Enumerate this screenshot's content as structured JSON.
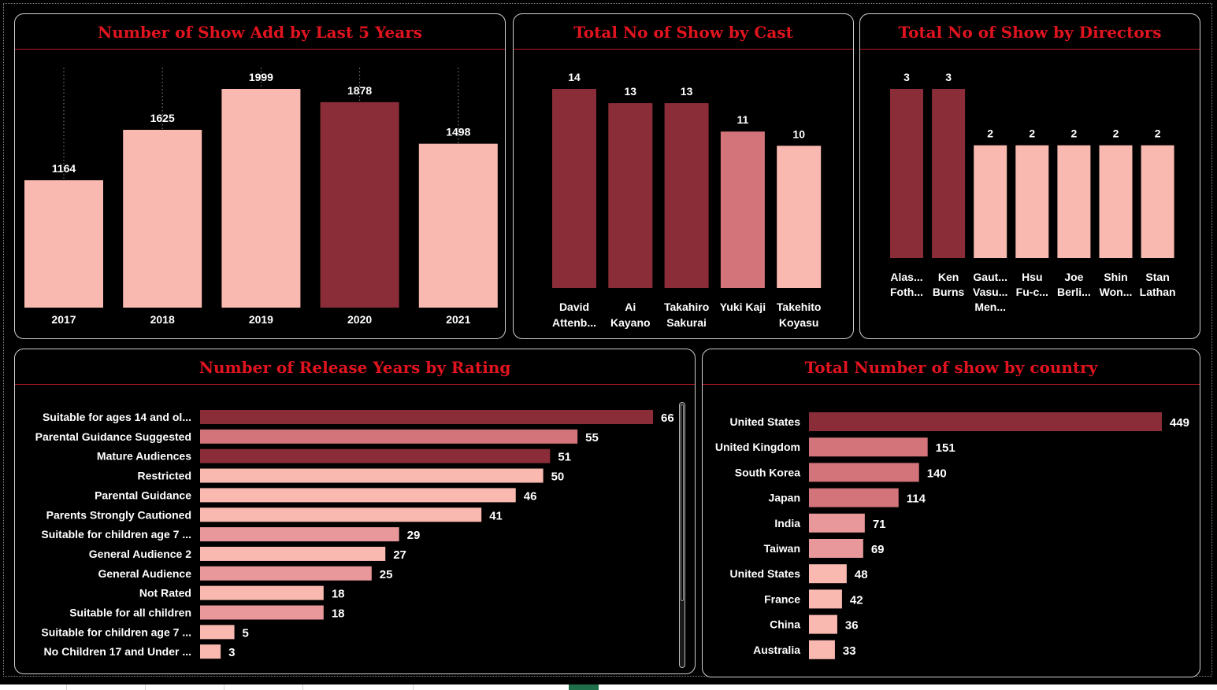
{
  "colors": {
    "title": "#e0141f",
    "dark": "#8b2d38",
    "mid": "#d3737a",
    "light": "#f9b8b0",
    "pink": "#e8989a"
  },
  "panels": {
    "years": {
      "title": "Number of Show Add by Last 5 Years"
    },
    "cast": {
      "title": "Total No of Show by Cast"
    },
    "directors": {
      "title": "Total No of Show by Directors"
    },
    "rating": {
      "title": "Number of Release Years by Rating"
    },
    "country": {
      "title": "Total Number of show by country"
    }
  },
  "chart_data": [
    {
      "id": "years",
      "type": "bar",
      "title": "Number of Show Add by Last 5 Years",
      "categories": [
        "2017",
        "2018",
        "2019",
        "2020",
        "2021"
      ],
      "values": [
        1164,
        1625,
        1999,
        1878,
        1498
      ],
      "bar_colors": [
        "light",
        "light",
        "light",
        "dark",
        "light"
      ],
      "ylim": [
        0,
        1999
      ]
    },
    {
      "id": "cast",
      "type": "bar",
      "title": "Total No of Show by Cast",
      "categories": [
        [
          "David",
          "Attenb..."
        ],
        [
          "Ai",
          "Kayano"
        ],
        [
          "Takahiro",
          "Sakurai"
        ],
        [
          "Yuki Kaji"
        ],
        [
          "Takehito",
          "Koyasu"
        ]
      ],
      "values": [
        14,
        13,
        13,
        11,
        10
      ],
      "bar_colors": [
        "dark",
        "dark",
        "dark",
        "mid",
        "light"
      ],
      "ylim": [
        0,
        14
      ]
    },
    {
      "id": "directors",
      "type": "bar",
      "title": "Total No of Show by Directors",
      "categories": [
        [
          "Alas...",
          "Foth..."
        ],
        [
          "Ken",
          "Burns"
        ],
        [
          "Gaut...",
          "Vasu...",
          "Men..."
        ],
        [
          "Hsu",
          "Fu-c..."
        ],
        [
          "Joe",
          "Berli..."
        ],
        [
          "Shin",
          "Won..."
        ],
        [
          "Stan",
          "Lathan"
        ]
      ],
      "values": [
        3,
        3,
        2,
        2,
        2,
        2,
        2
      ],
      "bar_colors": [
        "dark",
        "dark",
        "light",
        "light",
        "light",
        "light",
        "light"
      ],
      "ylim": [
        0,
        3
      ]
    },
    {
      "id": "rating",
      "type": "bar",
      "orientation": "horizontal",
      "title": "Number of Release Years by Rating",
      "categories": [
        "Suitable for ages 14 and ol...",
        "Parental Guidance Suggested",
        "Mature Audiences",
        "Restricted",
        "Parental Guidance",
        "Parents Strongly Cautioned",
        "Suitable for children age 7 ...",
        "General Audience 2",
        "General Audience",
        "Not Rated",
        "Suitable for all children",
        "Suitable for children age 7 ...",
        "No Children 17 and Under ..."
      ],
      "values": [
        66,
        55,
        51,
        50,
        46,
        41,
        29,
        27,
        25,
        18,
        18,
        5,
        3
      ],
      "bar_colors": [
        "dark",
        "mid",
        "dark",
        "light",
        "light",
        "light",
        "pink",
        "light",
        "pink",
        "light",
        "pink",
        "light",
        "light"
      ],
      "xlim": [
        0,
        66
      ]
    },
    {
      "id": "country",
      "type": "bar",
      "orientation": "horizontal",
      "title": "Total Number of show by country",
      "categories": [
        "United States",
        "United Kingdom",
        "South Korea",
        "Japan",
        "India",
        "Taiwan",
        "United States",
        "France",
        "China",
        "Australia"
      ],
      "values": [
        449,
        151,
        140,
        114,
        71,
        69,
        48,
        42,
        36,
        33
      ],
      "bar_colors": [
        "dark",
        "mid",
        "mid",
        "mid",
        "pink",
        "pink",
        "light",
        "light",
        "light",
        "light"
      ],
      "xlim": [
        0,
        449
      ]
    }
  ]
}
